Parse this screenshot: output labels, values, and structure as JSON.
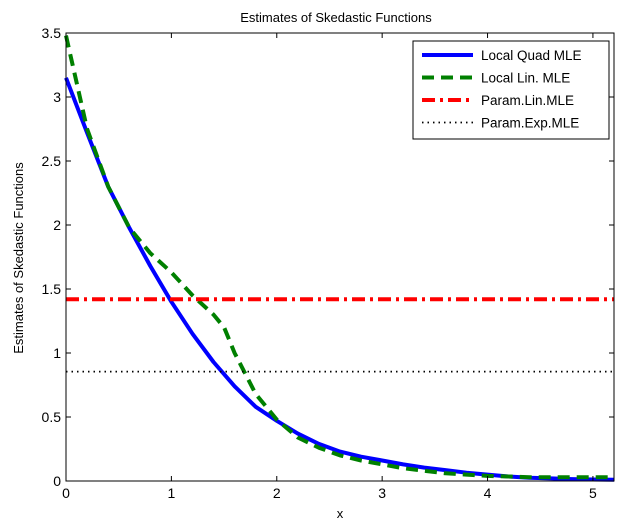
{
  "chart_data": {
    "type": "line",
    "title": "Estimates of Skedastic Functions",
    "xlabel": "x",
    "ylabel": "Estimates of Skedastic Functions",
    "xlim": [
      0,
      5.2
    ],
    "ylim": [
      0,
      3.5
    ],
    "xticks": [
      "0",
      "1",
      "2",
      "3",
      "4",
      "5"
    ],
    "yticks": [
      "0",
      "0.5",
      "1",
      "1.5",
      "2",
      "2.5",
      "3",
      "3.5"
    ],
    "grid": false,
    "legend_position": "top-right",
    "series": [
      {
        "name": "Local Quad MLE",
        "color": "#0000ff",
        "style": "solid",
        "x": [
          0,
          0.2,
          0.4,
          0.6,
          0.8,
          1.0,
          1.2,
          1.4,
          1.6,
          1.8,
          2.0,
          2.2,
          2.4,
          2.6,
          2.8,
          3.0,
          3.2,
          3.4,
          3.6,
          3.8,
          4.0,
          4.2,
          4.4,
          4.6,
          4.8,
          5.0,
          5.2
        ],
        "y": [
          3.15,
          2.72,
          2.3,
          1.98,
          1.68,
          1.4,
          1.15,
          0.93,
          0.74,
          0.58,
          0.47,
          0.37,
          0.29,
          0.23,
          0.19,
          0.16,
          0.13,
          0.105,
          0.085,
          0.065,
          0.05,
          0.035,
          0.025,
          0.02,
          0.015,
          0.012,
          0.01
        ]
      },
      {
        "name": "Local Lin. MLE",
        "color": "#008000",
        "style": "dashed",
        "x": [
          0,
          0.2,
          0.4,
          0.6,
          0.8,
          1.0,
          1.2,
          1.4,
          1.5,
          1.6,
          1.8,
          2.0,
          2.2,
          2.4,
          2.6,
          2.8,
          3.0,
          3.2,
          3.4,
          3.6,
          3.8,
          4.0,
          4.2,
          4.4,
          4.6,
          4.8,
          5.0,
          5.2
        ],
        "y": [
          3.48,
          2.75,
          2.3,
          1.98,
          1.78,
          1.63,
          1.45,
          1.3,
          1.2,
          1.0,
          0.68,
          0.48,
          0.34,
          0.26,
          0.2,
          0.16,
          0.13,
          0.1,
          0.08,
          0.06,
          0.05,
          0.04,
          0.035,
          0.03,
          0.03,
          0.03,
          0.03,
          0.03
        ]
      },
      {
        "name": "Param.Lin.MLE",
        "color": "#ff0000",
        "style": "dashdot",
        "x": [
          0,
          5.2
        ],
        "y": [
          1.42,
          1.42
        ]
      },
      {
        "name": "Param.Exp.MLE",
        "color": "#000000",
        "style": "dotted",
        "x": [
          0,
          5.2
        ],
        "y": [
          0.855,
          0.855
        ]
      }
    ]
  }
}
